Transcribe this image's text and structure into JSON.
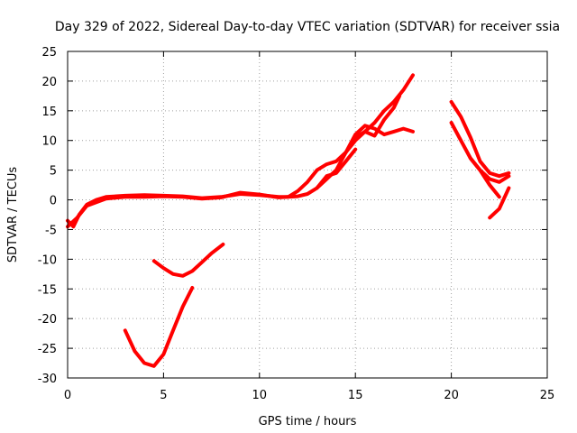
{
  "chart_data": {
    "type": "line",
    "title": "Day 329 of 2022, Sidereal Day-to-day VTEC variation (SDTVAR) for receiver ssia",
    "xlabel": "GPS time / hours",
    "ylabel": "SDTVAR / TECUs",
    "xlim": [
      0,
      25
    ],
    "ylim": [
      -30,
      25
    ],
    "xticks": [
      0,
      5,
      10,
      15,
      20,
      25
    ],
    "yticks": [
      -30,
      -25,
      -20,
      -15,
      -10,
      -5,
      0,
      5,
      10,
      15,
      20,
      25
    ],
    "xtick_labels": [
      "0",
      "5",
      "10",
      "15",
      "20",
      "25"
    ],
    "ytick_labels": [
      "-30",
      "-25",
      "-20",
      "-15",
      "-10",
      "-5",
      "0",
      "5",
      "10",
      "15",
      "20",
      "25"
    ],
    "grid": true,
    "series_color": "#ff0000",
    "series": [
      {
        "name": "main-trace-a",
        "x": [
          0,
          0.3,
          0.6,
          1,
          1.5,
          2,
          3,
          4,
          5,
          6,
          7,
          8,
          9,
          10,
          11,
          11.5,
          12,
          12.5,
          13,
          13.5,
          14,
          14.5,
          15,
          15.5,
          16,
          16.5,
          17,
          17.5,
          18
        ],
        "y": [
          -3.5,
          -4.5,
          -2.5,
          -0.8,
          0,
          0.5,
          0.7,
          0.8,
          0.7,
          0.6,
          0.3,
          0.5,
          1,
          0.8,
          0.5,
          0.5,
          1.5,
          3,
          5,
          6,
          6.5,
          8,
          10,
          11.5,
          13,
          15,
          16.5,
          18.5,
          21
        ]
      },
      {
        "name": "main-trace-b",
        "x": [
          0,
          0.5,
          1,
          2,
          3,
          4,
          5,
          6,
          7,
          8,
          9,
          10,
          11,
          12,
          12.5,
          13,
          13.5,
          14,
          14.5,
          15,
          15.5,
          16,
          16.5,
          17,
          17.5,
          18
        ],
        "y": [
          -4.5,
          -3,
          -1,
          0.2,
          0.5,
          0.5,
          0.6,
          0.5,
          0.2,
          0.4,
          1.2,
          0.9,
          0.4,
          0.6,
          1,
          2,
          3.5,
          5,
          8,
          11,
          12.5,
          12,
          11,
          11.5,
          12,
          11.5
        ]
      },
      {
        "name": "main-trace-c",
        "x": [
          15,
          15.5,
          16,
          16.5,
          17,
          17.3
        ],
        "y": [
          10.5,
          11.5,
          10.8,
          13.5,
          15.5,
          17.5
        ]
      },
      {
        "name": "main-trace-d",
        "x": [
          13,
          13.5,
          14,
          14.5,
          15
        ],
        "y": [
          2,
          4,
          4.5,
          6.5,
          8.5
        ]
      },
      {
        "name": "low-trace-a",
        "x": [
          4.5,
          5,
          5.5,
          6,
          6.5,
          7,
          7.5,
          8.1
        ],
        "y": [
          -10.3,
          -11.5,
          -12.5,
          -12.8,
          -12,
          -10.5,
          -9,
          -7.5
        ]
      },
      {
        "name": "low-trace-b",
        "x": [
          3,
          3.5,
          4,
          4.5,
          5,
          5.5,
          6,
          6.5
        ],
        "y": [
          -22,
          -25.5,
          -27.5,
          -28,
          -26,
          -22,
          -18,
          -14.8
        ]
      },
      {
        "name": "late-trace-a",
        "x": [
          20,
          20.5,
          21,
          21.5,
          22,
          22.5,
          23
        ],
        "y": [
          16.5,
          14,
          10.5,
          6.5,
          4.5,
          4,
          4.5
        ]
      },
      {
        "name": "late-trace-b",
        "x": [
          20,
          20.5,
          21,
          21.5,
          22,
          22.5,
          23
        ],
        "y": [
          13,
          10,
          7,
          5,
          3.5,
          3,
          4
        ]
      },
      {
        "name": "late-trace-c",
        "x": [
          21,
          21.5,
          22,
          22.5
        ],
        "y": [
          7,
          5,
          2.5,
          0.5
        ]
      },
      {
        "name": "late-trace-d",
        "x": [
          22,
          22.5,
          23
        ],
        "y": [
          -3,
          -1.5,
          2
        ]
      }
    ]
  }
}
